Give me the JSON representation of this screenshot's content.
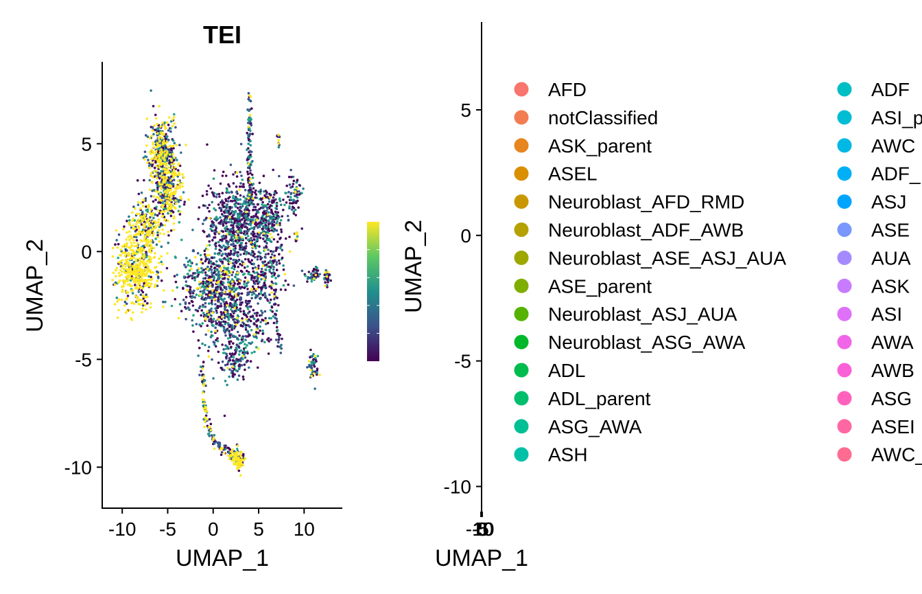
{
  "chart_data": [
    {
      "type": "scatter",
      "title": "TEI",
      "xlabel": "UMAP_1",
      "ylabel": "UMAP_2",
      "xlim": [
        -12.2,
        14.2
      ],
      "ylim": [
        -11.9,
        8.8
      ],
      "x_ticks": [
        "-10",
        "-5",
        "0",
        "5",
        "10"
      ],
      "x_tick_values": [
        -10,
        -5,
        0,
        5,
        10
      ],
      "y_ticks": [
        "-10",
        "-5",
        "0",
        "5"
      ],
      "y_tick_values": [
        -10,
        -5,
        0,
        5
      ],
      "colorbar": {
        "palette": "viridis",
        "colors": [
          "#440154",
          "#3b528b",
          "#21908d",
          "#5dc863",
          "#fde725"
        ]
      },
      "clusters": [
        {
          "cx": -8.5,
          "cy": -0.8,
          "sx": 1.1,
          "sy": 0.9,
          "n": 520,
          "hi": 0.75
        },
        {
          "cx": -5.6,
          "cy": 4.3,
          "sx": 0.8,
          "sy": 0.9,
          "n": 480,
          "hi": 0.35
        },
        {
          "cx": -4.7,
          "cy": 2.6,
          "sx": 0.7,
          "sy": 0.7,
          "n": 220,
          "hi": 0.4
        },
        {
          "cx": -7.2,
          "cy": 1.3,
          "sx": 0.9,
          "sy": 0.6,
          "n": 200,
          "hi": 0.5
        },
        {
          "cx": 2.5,
          "cy": 1.4,
          "sx": 1.6,
          "sy": 1.0,
          "n": 600,
          "hi": 0.03
        },
        {
          "cx": 0.3,
          "cy": -1.5,
          "sx": 2.1,
          "sy": 0.9,
          "n": 560,
          "hi": 0.08
        },
        {
          "cx": 2.3,
          "cy": -3.3,
          "sx": 1.8,
          "sy": 0.9,
          "n": 380,
          "hi": 0.05
        },
        {
          "cx": 6.2,
          "cy": 1.6,
          "sx": 1.2,
          "sy": 0.8,
          "n": 240,
          "hi": 0.04
        },
        {
          "cx": 5.5,
          "cy": -1.2,
          "sx": 1.2,
          "sy": 0.9,
          "n": 220,
          "hi": 0.04
        },
        {
          "cx": 2.4,
          "cy": -5.2,
          "sx": 0.7,
          "sy": 0.4,
          "n": 80,
          "hi": 0.06
        },
        {
          "cx": 11.1,
          "cy": -1.1,
          "sx": 0.5,
          "sy": 0.15,
          "n": 40,
          "hi": 0.05
        },
        {
          "cx": 12.5,
          "cy": -1.2,
          "sx": 0.2,
          "sy": 0.25,
          "n": 30,
          "hi": 0.2
        },
        {
          "cx": 11.0,
          "cy": -5.3,
          "sx": 0.3,
          "sy": 0.35,
          "n": 50,
          "hi": 0.05
        },
        {
          "cx": 2.8,
          "cy": -9.6,
          "sx": 0.35,
          "sy": 0.25,
          "n": 70,
          "hi": 0.6
        },
        {
          "cx": 7.2,
          "cy": 5.2,
          "sx": 0.1,
          "sy": 0.25,
          "n": 12,
          "hi": 0.2
        },
        {
          "cx": 9.1,
          "cy": 0.7,
          "sx": 0.15,
          "sy": 0.15,
          "n": 10,
          "hi": 0.2
        },
        {
          "cx": 9.0,
          "cy": 2.6,
          "sx": 0.4,
          "sy": 0.5,
          "n": 60,
          "hi": 0.05
        }
      ],
      "strands": [
        {
          "x": [
            4.0,
            4.1,
            3.9,
            4.0,
            4.1,
            4.3
          ],
          "y": [
            7.3,
            6.0,
            4.8,
            3.8,
            2.8,
            2.2
          ],
          "n": 130,
          "w": 0.12,
          "hi": 0.04
        },
        {
          "x": [
            -1.2,
            -1.0,
            -0.8,
            -0.2,
            0.8,
            1.8,
            2.6,
            3.0
          ],
          "y": [
            -5.3,
            -6.8,
            -7.8,
            -8.6,
            -9.1,
            -9.4,
            -9.6,
            -9.9
          ],
          "n": 170,
          "w": 0.12,
          "hi": 0.35
        },
        {
          "x": [
            6.8,
            7.0,
            7.4
          ],
          "y": [
            -2.5,
            -3.8,
            -4.5
          ],
          "n": 25,
          "w": 0.12,
          "hi": 0.05
        }
      ]
    },
    {
      "type": "scatter",
      "title": "",
      "xlabel": "UMAP_1",
      "ylabel": "UMAP_2",
      "x_ticks": [
        "-10",
        "-5",
        "0",
        "5",
        "10"
      ],
      "y_ticks": [
        "-10",
        "-5",
        "0",
        "5"
      ],
      "y_tick_values": [
        -10,
        -5,
        0,
        5
      ],
      "ylim": [
        -11.0,
        8.5
      ],
      "legend": {
        "position": "right",
        "columns": 2,
        "entries": [
          {
            "label": "AFD",
            "color": "#F8766D"
          },
          {
            "label": "notClassified",
            "color": "#F27D52"
          },
          {
            "label": "ASK_parent",
            "color": "#E7851E"
          },
          {
            "label": "ASEL",
            "color": "#D98F00"
          },
          {
            "label": "Neuroblast_AFD_RMD",
            "color": "#C99800"
          },
          {
            "label": "Neuroblast_ADF_AWB",
            "color": "#B5A100"
          },
          {
            "label": "Neuroblast_ASE_ASJ_AUA",
            "color": "#9DA700"
          },
          {
            "label": "ASE_parent",
            "color": "#7FAE00"
          },
          {
            "label": "Neuroblast_ASJ_AUA",
            "color": "#55B300"
          },
          {
            "label": "Neuroblast_ASG_AWA",
            "color": "#00B82A"
          },
          {
            "label": "ADL",
            "color": "#00BB4E"
          },
          {
            "label": "ADL_parent",
            "color": "#00BE6C"
          },
          {
            "label": "ASG_AWA",
            "color": "#00C094"
          },
          {
            "label": "ASH",
            "color": "#00C1A7"
          },
          {
            "label": "ADF",
            "color": "#00BFC4"
          },
          {
            "label": "ASI_p",
            "color": "#00BDD4"
          },
          {
            "label": "AWC",
            "color": "#00B8E4"
          },
          {
            "label": "ADF_",
            "color": "#00B0F6"
          },
          {
            "label": "ASJ",
            "color": "#00A5FF"
          },
          {
            "label": "ASE",
            "color": "#7997FF"
          },
          {
            "label": "AUA",
            "color": "#A58AFF"
          },
          {
            "label": "ASK",
            "color": "#C77CFF"
          },
          {
            "label": "ASI",
            "color": "#DF70F8"
          },
          {
            "label": "AWA",
            "color": "#F166E8"
          },
          {
            "label": "AWB",
            "color": "#FB61D7"
          },
          {
            "label": "ASG",
            "color": "#FF62BC"
          },
          {
            "label": "ASEI",
            "color": "#FF67A4"
          },
          {
            "label": "AWC_",
            "color": "#FF6C91"
          }
        ]
      }
    }
  ]
}
